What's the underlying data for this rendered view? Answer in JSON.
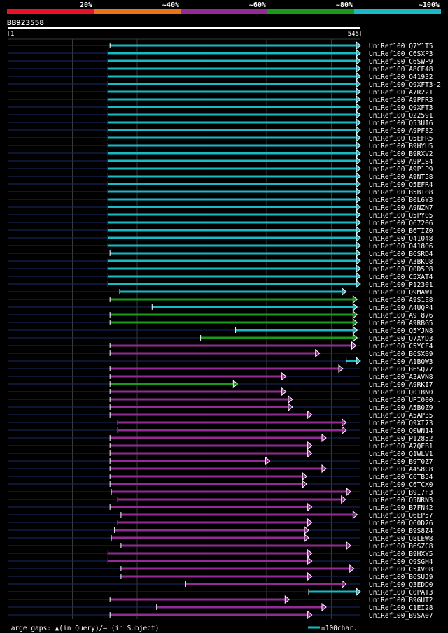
{
  "chart_data": {
    "type": "alignment",
    "query_id": "BB923558",
    "query_start": "1",
    "query_end": "545",
    "query_length": 545,
    "identity_bins": [
      {
        "label": "20%",
        "color": "#e8112a"
      },
      {
        "label": "~40%",
        "color": "#e8751a"
      },
      {
        "label": "~60%",
        "color": "#922b94"
      },
      {
        "label": "~80%",
        "color": "#1a9a1a"
      },
      {
        "label": "~100%",
        "color": "#19b9c6"
      }
    ],
    "hits": [
      {
        "id": "UniRef100_Q7Y1T5",
        "start": 158,
        "end": 545,
        "bin": 4
      },
      {
        "id": "UniRef100_C6SXP3",
        "start": 155,
        "end": 545,
        "bin": 4
      },
      {
        "id": "UniRef100_C6SWP9",
        "start": 155,
        "end": 545,
        "bin": 4
      },
      {
        "id": "UniRef100_A8CF48",
        "start": 155,
        "end": 545,
        "bin": 4
      },
      {
        "id": "UniRef100_O41932",
        "start": 155,
        "end": 545,
        "bin": 4
      },
      {
        "id": "UniRef100_Q9XFT3-2",
        "start": 155,
        "end": 545,
        "bin": 4
      },
      {
        "id": "UniRef100_A7R221",
        "start": 155,
        "end": 545,
        "bin": 4
      },
      {
        "id": "UniRef100_A9PFR3",
        "start": 155,
        "end": 545,
        "bin": 4
      },
      {
        "id": "UniRef100_Q9XFT3",
        "start": 155,
        "end": 545,
        "bin": 4
      },
      {
        "id": "UniRef100_O22591",
        "start": 155,
        "end": 545,
        "bin": 4
      },
      {
        "id": "UniRef100_Q53UI6",
        "start": 155,
        "end": 545,
        "bin": 4
      },
      {
        "id": "UniRef100_A9PF82",
        "start": 155,
        "end": 545,
        "bin": 4
      },
      {
        "id": "UniRef100_Q5EFR5",
        "start": 155,
        "end": 545,
        "bin": 4
      },
      {
        "id": "UniRef100_B9HYU5",
        "start": 155,
        "end": 545,
        "bin": 4
      },
      {
        "id": "UniRef100_B9RXV2",
        "start": 155,
        "end": 545,
        "bin": 4
      },
      {
        "id": "UniRef100_A9P1S4",
        "start": 155,
        "end": 545,
        "bin": 4
      },
      {
        "id": "UniRef100_A9P1P9",
        "start": 155,
        "end": 545,
        "bin": 4
      },
      {
        "id": "UniRef100_A9NT58",
        "start": 155,
        "end": 545,
        "bin": 4
      },
      {
        "id": "UniRef100_Q5EFR4",
        "start": 155,
        "end": 545,
        "bin": 4
      },
      {
        "id": "UniRef100_B5BT08",
        "start": 155,
        "end": 545,
        "bin": 4
      },
      {
        "id": "UniRef100_B0L6Y3",
        "start": 155,
        "end": 545,
        "bin": 4
      },
      {
        "id": "UniRef100_A9NZN7",
        "start": 155,
        "end": 545,
        "bin": 4
      },
      {
        "id": "UniRef100_Q5PY05",
        "start": 155,
        "end": 545,
        "bin": 4
      },
      {
        "id": "UniRef100_Q67206",
        "start": 155,
        "end": 545,
        "bin": 4
      },
      {
        "id": "UniRef100_B6TIZ0",
        "start": 155,
        "end": 545,
        "bin": 4
      },
      {
        "id": "UniRef100_O41048",
        "start": 155,
        "end": 545,
        "bin": 4
      },
      {
        "id": "UniRef100_O41806",
        "start": 155,
        "end": 545,
        "bin": 4
      },
      {
        "id": "UniRef100_B6SRD4",
        "start": 158,
        "end": 545,
        "bin": 4
      },
      {
        "id": "UniRef100_A3BKU8",
        "start": 155,
        "end": 545,
        "bin": 4
      },
      {
        "id": "UniRef100_Q0D5P8",
        "start": 155,
        "end": 545,
        "bin": 4
      },
      {
        "id": "UniRef100_C5XAT4",
        "start": 155,
        "end": 545,
        "bin": 4
      },
      {
        "id": "UniRef100_P12301",
        "start": 155,
        "end": 545,
        "bin": 4
      },
      {
        "id": "UniRef100_Q9MAW1",
        "start": 173,
        "end": 523,
        "bin": 4
      },
      {
        "id": "UniRef100_A9S1E8",
        "start": 158,
        "end": 540,
        "bin": 3
      },
      {
        "id": "UniRef100_A4UQP4",
        "start": 223,
        "end": 540,
        "bin": 4
      },
      {
        "id": "UniRef100_A9T876",
        "start": 158,
        "end": 540,
        "bin": 3
      },
      {
        "id": "UniRef100_A9RBG5",
        "start": 158,
        "end": 540,
        "bin": 3
      },
      {
        "id": "UniRef100_Q5YJN8",
        "start": 352,
        "end": 540,
        "bin": 4
      },
      {
        "id": "UniRef100_Q7XYD3",
        "start": 298,
        "end": 540,
        "bin": 3
      },
      {
        "id": "UniRef100_C5YCF4",
        "start": 158,
        "end": 538,
        "bin": 2
      },
      {
        "id": "UniRef100_B6SXB9",
        "start": 158,
        "end": 482,
        "bin": 2
      },
      {
        "id": "UniRef100_A1BQW3",
        "start": 523,
        "end": 545,
        "bin": 4
      },
      {
        "id": "UniRef100_B6SQ77",
        "start": 158,
        "end": 518,
        "bin": 2
      },
      {
        "id": "UniRef100_A3AVN8",
        "start": 158,
        "end": 430,
        "bin": 2
      },
      {
        "id": "UniRef100_A9RKI7",
        "start": 158,
        "end": 355,
        "bin": 3
      },
      {
        "id": "UniRef100_Q01BN0",
        "start": 158,
        "end": 430,
        "bin": 2
      },
      {
        "id": "UniRef100_UPI000..",
        "start": 158,
        "end": 440,
        "bin": 2
      },
      {
        "id": "UniRef100_A5B0Z9",
        "start": 158,
        "end": 440,
        "bin": 2
      },
      {
        "id": "UniRef100_A5AP35",
        "start": 158,
        "end": 470,
        "bin": 2
      },
      {
        "id": "UniRef100_Q9XI73",
        "start": 170,
        "end": 523,
        "bin": 2
      },
      {
        "id": "UniRef100_Q0WN14",
        "start": 170,
        "end": 523,
        "bin": 2
      },
      {
        "id": "UniRef100_P12852",
        "start": 158,
        "end": 492,
        "bin": 2
      },
      {
        "id": "UniRef100_A7QEB1",
        "start": 158,
        "end": 470,
        "bin": 2
      },
      {
        "id": "UniRef100_Q1WLV1",
        "start": 158,
        "end": 470,
        "bin": 2
      },
      {
        "id": "UniRef100_B9T0Z7",
        "start": 158,
        "end": 405,
        "bin": 2
      },
      {
        "id": "UniRef100_A4S8C8",
        "start": 158,
        "end": 492,
        "bin": 2
      },
      {
        "id": "UniRef100_C6TB54",
        "start": 158,
        "end": 462,
        "bin": 2
      },
      {
        "id": "UniRef100_C6TCX0",
        "start": 158,
        "end": 462,
        "bin": 2
      },
      {
        "id": "UniRef100_B9I7F3",
        "start": 160,
        "end": 530,
        "bin": 2
      },
      {
        "id": "UniRef100_Q5NRN3",
        "start": 170,
        "end": 522,
        "bin": 2
      },
      {
        "id": "UniRef100_B7FN42",
        "start": 158,
        "end": 470,
        "bin": 2
      },
      {
        "id": "UniRef100_Q6EP57",
        "start": 175,
        "end": 540,
        "bin": 2
      },
      {
        "id": "UniRef100_Q60D26",
        "start": 170,
        "end": 470,
        "bin": 2
      },
      {
        "id": "UniRef100_B9S8Z4",
        "start": 165,
        "end": 465,
        "bin": 2
      },
      {
        "id": "UniRef100_Q8LEW8",
        "start": 160,
        "end": 465,
        "bin": 2
      },
      {
        "id": "UniRef100_B6SZC8",
        "start": 175,
        "end": 530,
        "bin": 2
      },
      {
        "id": "UniRef100_B9HXY5",
        "start": 155,
        "end": 470,
        "bin": 2
      },
      {
        "id": "UniRef100_Q9SGH4",
        "start": 155,
        "end": 470,
        "bin": 2
      },
      {
        "id": "UniRef100_C5XV08",
        "start": 175,
        "end": 535,
        "bin": 2
      },
      {
        "id": "UniRef100_B6SUJ9",
        "start": 175,
        "end": 470,
        "bin": 2
      },
      {
        "id": "UniRef100_Q3EDD0",
        "start": 275,
        "end": 523,
        "bin": 2
      },
      {
        "id": "UniRef100_C0PAT3",
        "start": 465,
        "end": 545,
        "bin": 4
      },
      {
        "id": "UniRef100_B9GUT2",
        "start": 158,
        "end": 435,
        "bin": 2
      },
      {
        "id": "UniRef100_C1EI28",
        "start": 230,
        "end": 492,
        "bin": 2
      },
      {
        "id": "UniRef100_B9SA07",
        "start": 158,
        "end": 470,
        "bin": 2
      }
    ],
    "legend_text": "Large gaps: ▲(in Query)/— (in Subject)",
    "scale_text": "=100char."
  }
}
